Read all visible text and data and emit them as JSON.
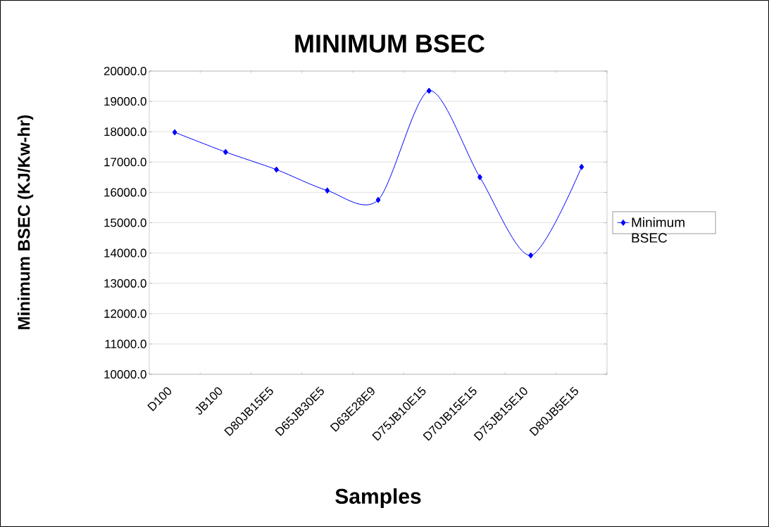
{
  "chart_data": {
    "type": "line",
    "title": "MINIMUM   BSEC",
    "xlabel": "Samples",
    "ylabel": "Minimum BSEC (KJ/Kw-hr)",
    "categories": [
      "D100",
      "JB100",
      "D80JB15E5",
      "D65JB30E5",
      "D63E28E9",
      "D75JB10E15",
      "D70JB15E15",
      "D75JB15E10",
      "D80JB5E15"
    ],
    "series": [
      {
        "name": "Minimum BSEC",
        "color": "#0000ff",
        "values": [
          17980,
          17330,
          16750,
          16060,
          15750,
          19350,
          16500,
          13920,
          16840
        ]
      }
    ],
    "ylim": [
      10000,
      20000
    ],
    "yticks": [
      {
        "value": 10000,
        "label": "10000.0"
      },
      {
        "value": 11000,
        "label": "11000.0"
      },
      {
        "value": 12000,
        "label": "12000.0"
      },
      {
        "value": 13000,
        "label": "13000.0"
      },
      {
        "value": 14000,
        "label": "14000.0"
      },
      {
        "value": 15000,
        "label": "15000.0"
      },
      {
        "value": 16000,
        "label": "16000.0"
      },
      {
        "value": 17000,
        "label": "17000.0"
      },
      {
        "value": 18000,
        "label": "18000.0"
      },
      {
        "value": 19000,
        "label": "19000.0"
      },
      {
        "value": 20000,
        "label": "20000.0"
      }
    ],
    "grid": "y",
    "legend": "right",
    "marker": "diamond",
    "line_style": "solid"
  }
}
